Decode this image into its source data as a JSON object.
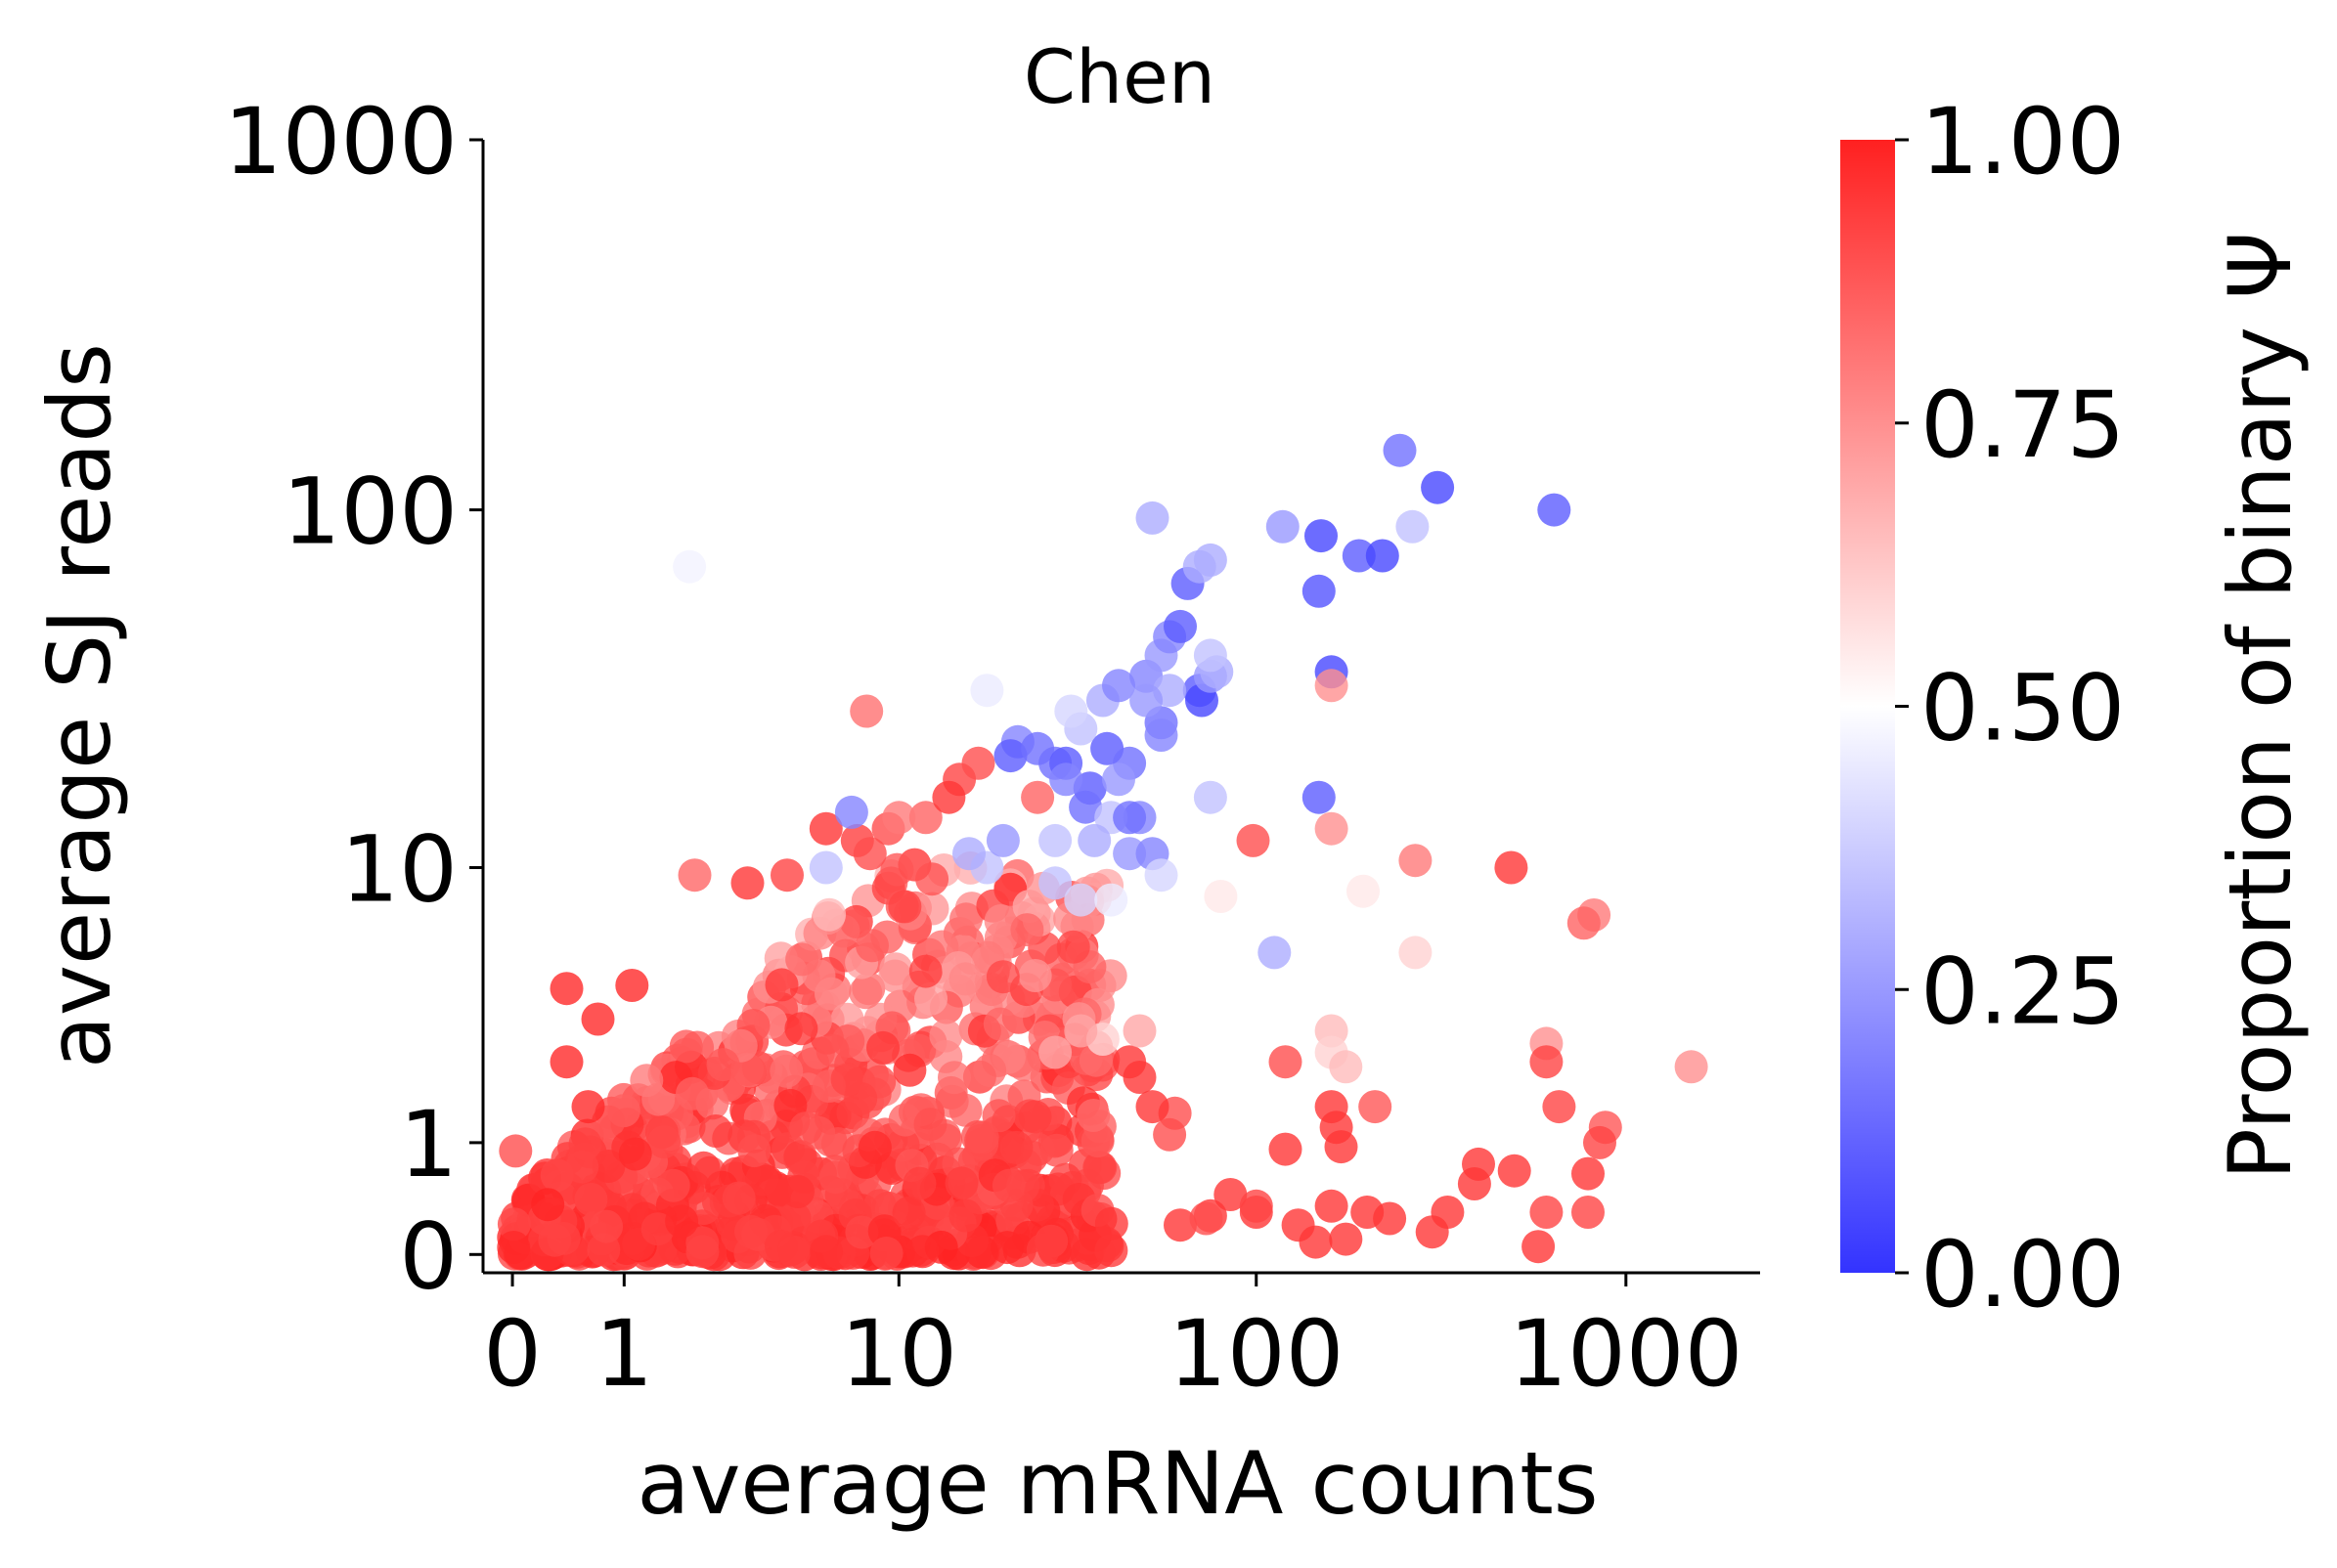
{
  "chart_data": {
    "type": "scatter",
    "title": "Chen",
    "xlabel": "average mRNA counts",
    "ylabel": "average SJ reads",
    "xscale": "symlog",
    "yscale": "symlog",
    "xlim": [
      -0.2,
      2300
    ],
    "ylim": [
      -0.12,
      1000
    ],
    "xticks": [
      0,
      1,
      10,
      100,
      1000
    ],
    "xtick_labels": [
      "0",
      "1",
      "10",
      "100",
      "1000"
    ],
    "yticks": [
      0,
      1,
      10,
      100,
      1000
    ],
    "ytick_labels": [
      "0",
      "1",
      "10",
      "100",
      "1000"
    ],
    "grid": false,
    "colormap": "bwr",
    "colorbar": {
      "label": "Proportion of binary Ψ",
      "min": 0.0,
      "max": 1.0,
      "ticks": [
        0.0,
        0.25,
        0.5,
        0.75,
        1.0
      ],
      "tick_labels": [
        "0.00",
        "0.25",
        "0.50",
        "0.75",
        "1.00"
      ],
      "color_low": "#3333ff",
      "color_mid": "#ffffff",
      "color_high": "#ff2020"
    },
    "points": [
      [
        2.0,
        70,
        0.47
      ],
      [
        8.0,
        28,
        0.82
      ],
      [
        2.1,
        9.5,
        0.84
      ],
      [
        0.02,
        0.9,
        0.9
      ],
      [
        0.4,
        4.2,
        0.98
      ],
      [
        1.1,
        4.3,
        0.98
      ],
      [
        0.7,
        3.3,
        0.98
      ],
      [
        0.4,
        2.3,
        0.98
      ],
      [
        0.6,
        1.5,
        0.98
      ],
      [
        3.3,
        9.0,
        0.95
      ],
      [
        4.5,
        9.5,
        0.92
      ],
      [
        7.5,
        12,
        0.93
      ],
      [
        8.2,
        11,
        0.9
      ],
      [
        9.3,
        13,
        0.9
      ],
      [
        6.0,
        13,
        0.95
      ],
      [
        15,
        18,
        0.92
      ],
      [
        12,
        14,
        0.85
      ],
      [
        14,
        16,
        0.95
      ],
      [
        17,
        20,
        0.9
      ],
      [
        10,
        14,
        0.8
      ],
      [
        25,
        16,
        0.85
      ],
      [
        7.2,
        14.5,
        0.2
      ],
      [
        22,
        23,
        0.2
      ],
      [
        21,
        21,
        0.1
      ],
      [
        25,
        22,
        0.15
      ],
      [
        28,
        20,
        0.15
      ],
      [
        30,
        20,
        0.1
      ],
      [
        35,
        17,
        0.1
      ],
      [
        34,
        15,
        0.15
      ],
      [
        30,
        18,
        0.2
      ],
      [
        39,
        22,
        0.1
      ],
      [
        45,
        20,
        0.15
      ],
      [
        42,
        18,
        0.25
      ],
      [
        48,
        14,
        0.2
      ],
      [
        45,
        11,
        0.25
      ],
      [
        40,
        14,
        0.35
      ],
      [
        33,
        25,
        0.35
      ],
      [
        31,
        28,
        0.4
      ],
      [
        38,
        30,
        0.3
      ],
      [
        42,
        33,
        0.2
      ],
      [
        50,
        35,
        0.2
      ],
      [
        55,
        40,
        0.25
      ],
      [
        58,
        45,
        0.2
      ],
      [
        62,
        48,
        0.1
      ],
      [
        70,
        32,
        0.1
      ],
      [
        71,
        30,
        0.05
      ],
      [
        75,
        35,
        0.25
      ],
      [
        78,
        36,
        0.3
      ],
      [
        75,
        40,
        0.35
      ],
      [
        58,
        32,
        0.3
      ],
      [
        55,
        26,
        0.15
      ],
      [
        50,
        30,
        0.25
      ],
      [
        65,
        63,
        0.1
      ],
      [
        70,
        70,
        0.3
      ],
      [
        75,
        73,
        0.3
      ],
      [
        52,
        95,
        0.3
      ],
      [
        18,
        32,
        0.45
      ],
      [
        55,
        24,
        0.2
      ],
      [
        52,
        11,
        0.2
      ],
      [
        45,
        14,
        0.15
      ],
      [
        36,
        12,
        0.3
      ],
      [
        28,
        9.0,
        0.35
      ],
      [
        33,
        8.0,
        0.4
      ],
      [
        40,
        8.0,
        0.45
      ],
      [
        28,
        12,
        0.35
      ],
      [
        18,
        10,
        0.35
      ],
      [
        20,
        12,
        0.25
      ],
      [
        16,
        11,
        0.3
      ],
      [
        6.0,
        10,
        0.35
      ],
      [
        55,
        9.5,
        0.4
      ],
      [
        75,
        16,
        0.35
      ],
      [
        78,
        8.0,
        0.5
      ],
      [
        80,
        8.2,
        0.55
      ],
      [
        118,
        90,
        0.25
      ],
      [
        150,
        85,
        0.05
      ],
      [
        190,
        75,
        0.1
      ],
      [
        220,
        75,
        0.05
      ],
      [
        265,
        90,
        0.35
      ],
      [
        245,
        145,
        0.15
      ],
      [
        310,
        115,
        0.05
      ],
      [
        640,
        100,
        0.1
      ],
      [
        148,
        60,
        0.08
      ],
      [
        160,
        36,
        0.05
      ],
      [
        148,
        16,
        0.1
      ],
      [
        112,
        5.5,
        0.3
      ],
      [
        160,
        33,
        0.75
      ],
      [
        160,
        13,
        0.75
      ],
      [
        98,
        12,
        0.9
      ],
      [
        270,
        10.5,
        0.8
      ],
      [
        490,
        10,
        0.95
      ],
      [
        195,
        8.5,
        0.55
      ],
      [
        820,
        7.2,
        0.8
      ],
      [
        770,
        6.8,
        0.85
      ],
      [
        270,
        5.5,
        0.6
      ],
      [
        160,
        3.0,
        0.65
      ],
      [
        160,
        2.5,
        0.6
      ],
      [
        175,
        2.2,
        0.65
      ],
      [
        1500,
        2.2,
        0.75
      ],
      [
        610,
        2.7,
        0.75
      ],
      [
        610,
        2.3,
        0.92
      ],
      [
        120,
        2.3,
        0.9
      ],
      [
        210,
        1.5,
        0.88
      ],
      [
        660,
        1.5,
        0.92
      ],
      [
        880,
        1.2,
        0.88
      ],
      [
        850,
        1.0,
        0.92
      ],
      [
        160,
        1.5,
        0.95
      ],
      [
        165,
        1.2,
        0.95
      ],
      [
        170,
        0.95,
        0.95
      ],
      [
        120,
        0.92,
        0.95
      ],
      [
        100,
        0.3,
        0.95
      ],
      [
        85,
        0.45,
        0.95
      ],
      [
        100,
        0.35,
        0.92
      ],
      [
        62,
        0.2,
        0.95
      ],
      [
        75,
        0.27,
        0.95
      ],
      [
        73,
        0.25,
        0.9
      ],
      [
        160,
        0.35,
        0.95
      ],
      [
        145,
        0.08,
        0.95
      ],
      [
        130,
        0.2,
        0.95
      ],
      [
        175,
        0.1,
        0.95
      ],
      [
        200,
        0.3,
        0.95
      ],
      [
        230,
        0.25,
        0.95
      ],
      [
        300,
        0.15,
        0.95
      ],
      [
        330,
        0.3,
        0.95
      ],
      [
        390,
        0.55,
        0.95
      ],
      [
        400,
        0.75,
        0.95
      ],
      [
        500,
        0.68,
        0.95
      ],
      [
        610,
        0.3,
        0.92
      ],
      [
        580,
        0.05,
        0.95
      ],
      [
        790,
        0.65,
        0.95
      ],
      [
        790,
        0.3,
        0.92
      ],
      [
        58,
        1.1,
        0.9
      ],
      [
        60,
        1.4,
        0.9
      ],
      [
        52,
        1.5,
        0.95
      ],
      [
        48,
        2.0,
        0.95
      ],
      [
        45,
        2.3,
        0.95
      ],
      [
        48,
        3.0,
        0.7
      ],
      [
        38,
        2.8,
        0.6
      ],
      [
        33,
        3.0,
        0.7
      ],
      [
        28,
        2.5,
        0.7
      ]
    ]
  }
}
